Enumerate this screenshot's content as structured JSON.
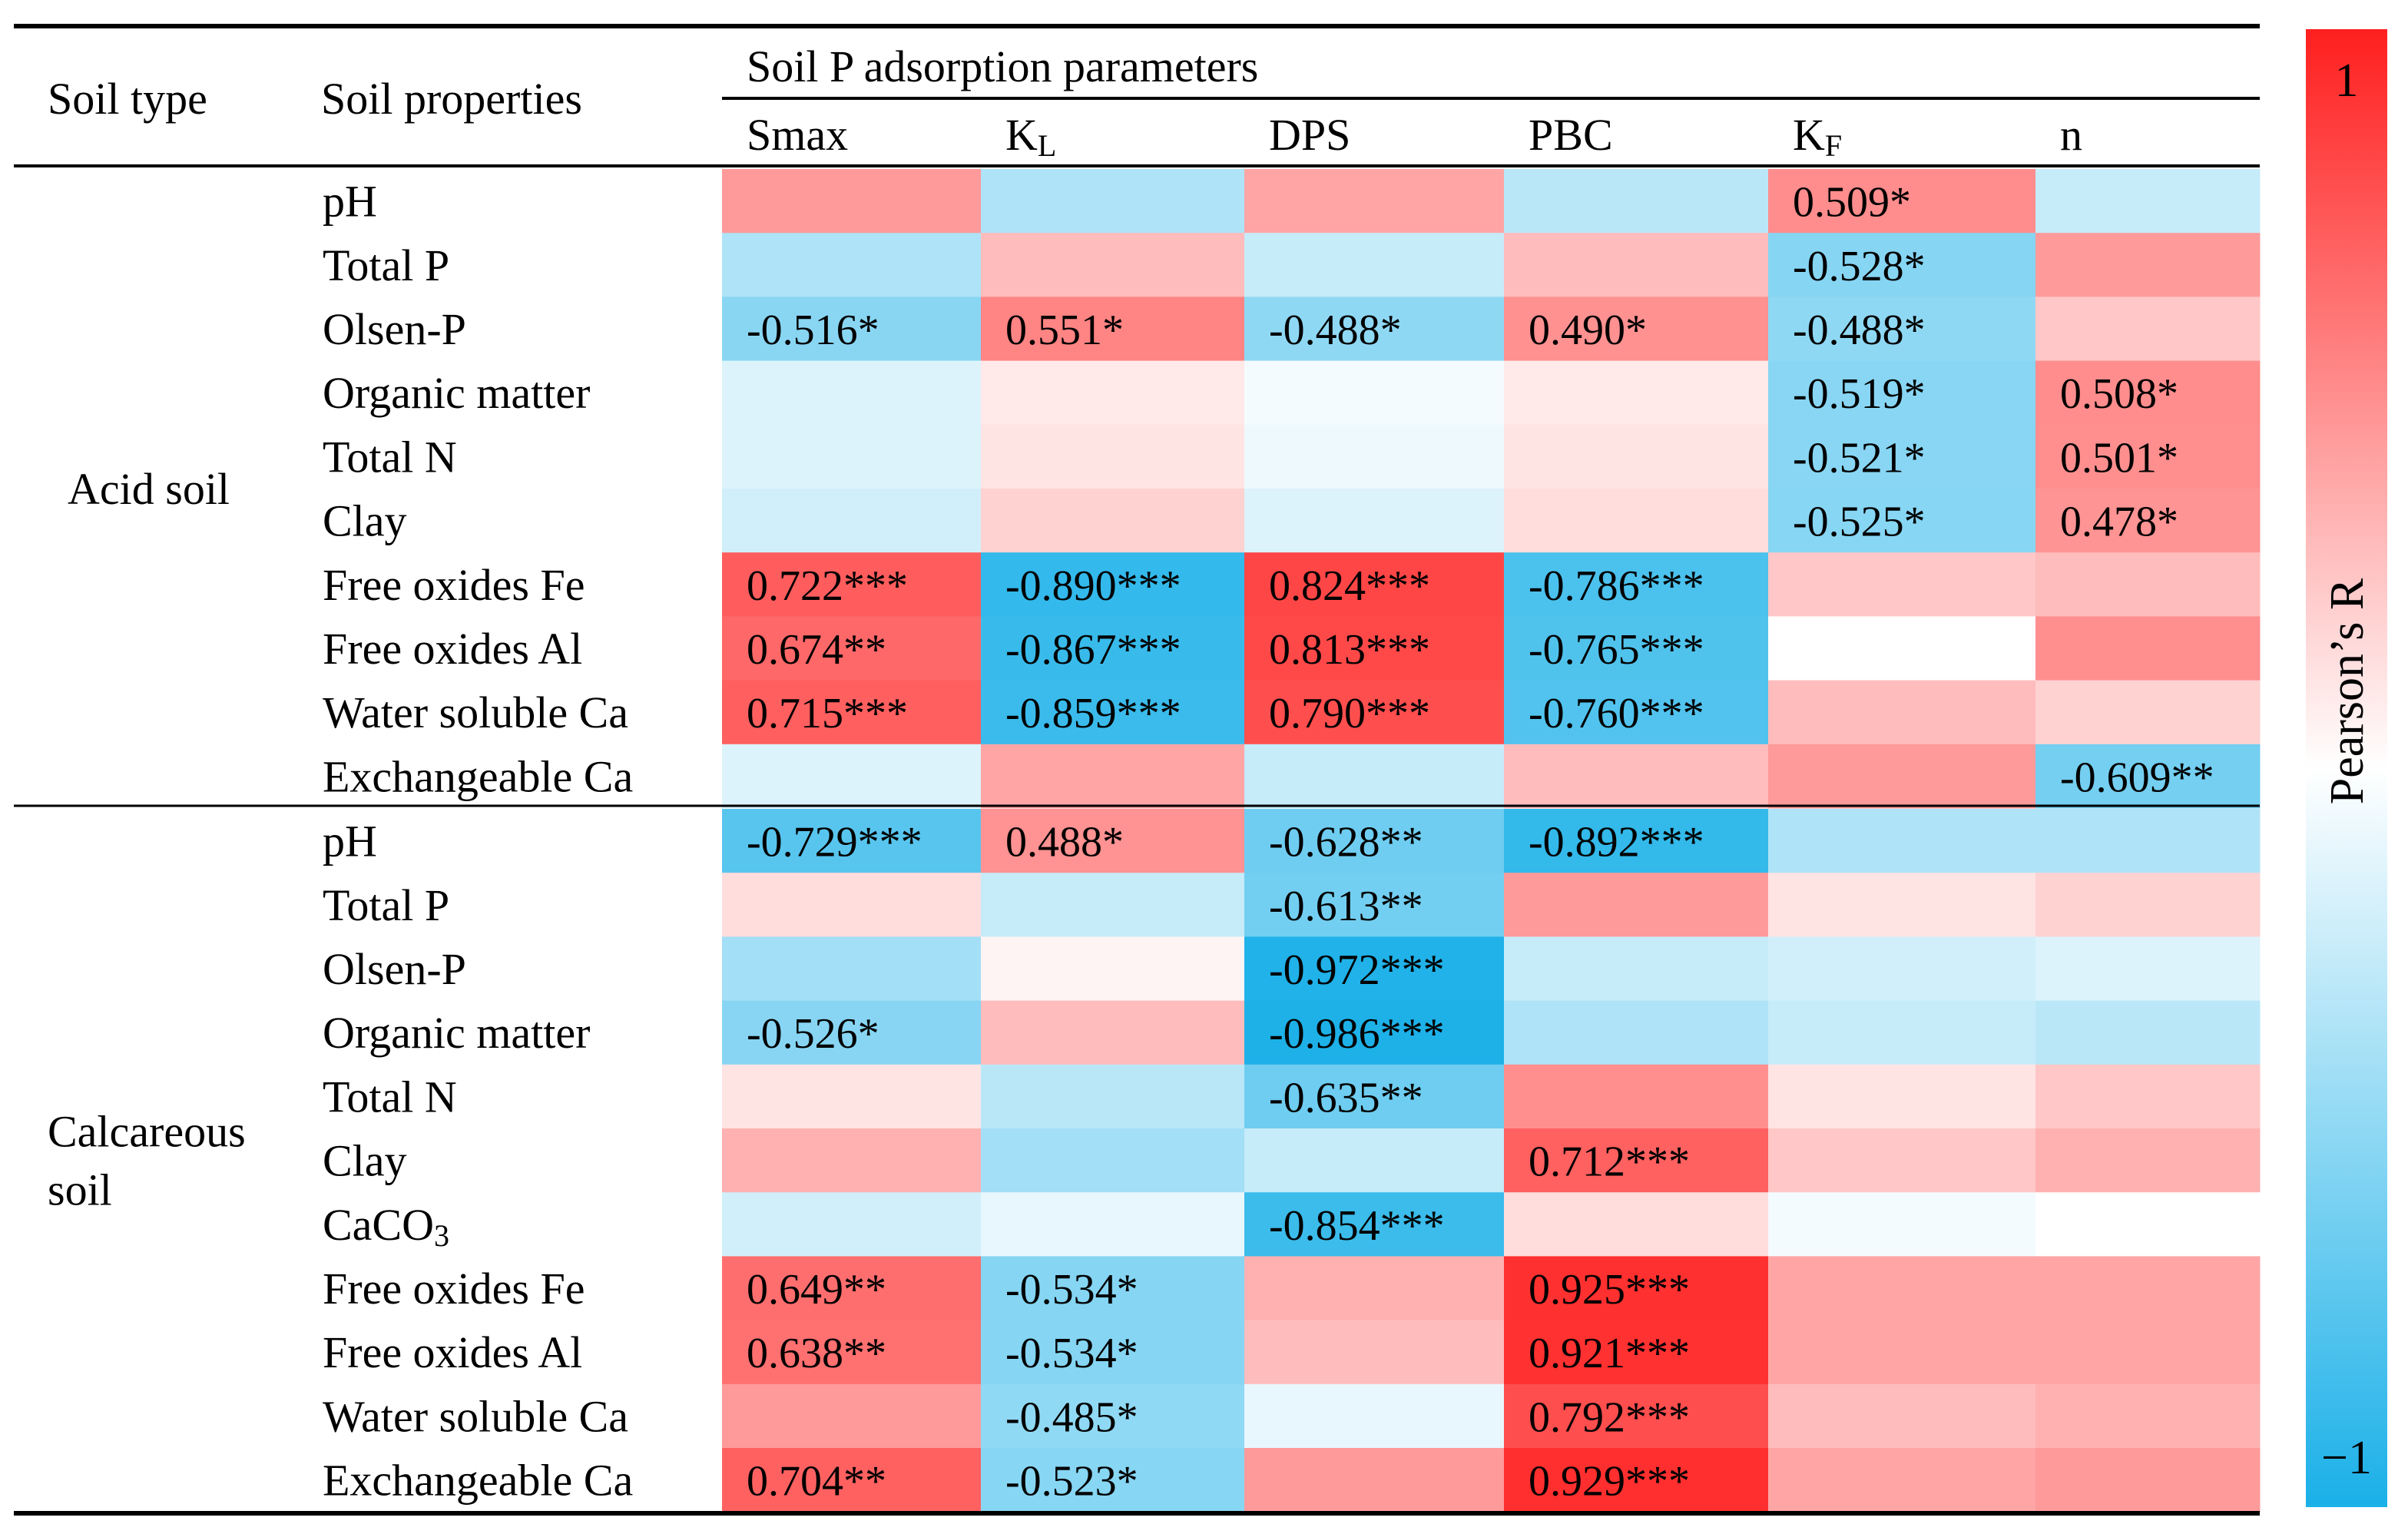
{
  "header": {
    "soil_type": "Soil type",
    "soil_properties": "Soil properties",
    "group_title": "Soil P adsorption parameters"
  },
  "chart_data": {
    "type": "heatmap",
    "title": "Soil P adsorption parameters",
    "columns": [
      {
        "main": "Smax",
        "sub": ""
      },
      {
        "main": "K",
        "sub": "L"
      },
      {
        "main": "DPS",
        "sub": ""
      },
      {
        "main": "PBC",
        "sub": ""
      },
      {
        "main": "K",
        "sub": "F"
      },
      {
        "main": "n",
        "sub": ""
      }
    ],
    "groups": [
      {
        "name_lines": [
          "Acid soil"
        ],
        "rows": [
          {
            "label": "pH",
            "values": [
              0.45,
              -0.35,
              0.4,
              -0.3,
              0.509,
              -0.25
            ],
            "labels": [
              "",
              "",
              "",
              "",
              "0.509*",
              ""
            ]
          },
          {
            "label": "Total P",
            "values": [
              -0.35,
              0.3,
              -0.25,
              0.3,
              -0.528,
              0.45
            ],
            "labels": [
              "",
              "",
              "",
              "",
              "-0.528*",
              ""
            ]
          },
          {
            "label": "Olsen-P",
            "values": [
              -0.516,
              0.551,
              -0.488,
              0.49,
              -0.488,
              0.25
            ],
            "labels": [
              "-0.516*",
              "0.551*",
              "-0.488*",
              "0.490*",
              "-0.488*",
              ""
            ]
          },
          {
            "label": "Organic matter",
            "values": [
              -0.15,
              0.1,
              -0.05,
              0.1,
              -0.519,
              0.508
            ],
            "labels": [
              "",
              "",
              "",
              "",
              "-0.519*",
              "0.508*"
            ]
          },
          {
            "label": "Total N",
            "values": [
              -0.15,
              0.12,
              -0.08,
              0.12,
              -0.521,
              0.501
            ],
            "labels": [
              "",
              "",
              "",
              "",
              "-0.521*",
              "0.501*"
            ]
          },
          {
            "label": "Clay",
            "values": [
              -0.2,
              0.2,
              -0.15,
              0.15,
              -0.525,
              0.478
            ],
            "labels": [
              "",
              "",
              "",
              "",
              "-0.525*",
              "0.478*"
            ]
          },
          {
            "label": "Free oxides Fe",
            "values": [
              0.722,
              -0.89,
              0.824,
              -0.786,
              0.25,
              0.3
            ],
            "labels": [
              "0.722***",
              "-0.890***",
              "0.824***",
              "-0.786***",
              "",
              ""
            ]
          },
          {
            "label": "Free oxides Al",
            "values": [
              0.674,
              -0.867,
              0.813,
              -0.765,
              0.0,
              0.5
            ],
            "labels": [
              "0.674**",
              "-0.867***",
              "0.813***",
              "-0.765***",
              "",
              ""
            ]
          },
          {
            "label": "Water soluble Ca",
            "values": [
              0.715,
              -0.859,
              0.79,
              -0.76,
              0.3,
              0.2
            ],
            "labels": [
              "0.715***",
              "-0.859***",
              "0.790***",
              "-0.760***",
              "",
              ""
            ]
          },
          {
            "label": "Exchangeable Ca",
            "values": [
              -0.15,
              0.4,
              -0.25,
              0.3,
              0.45,
              -0.609
            ],
            "labels": [
              "",
              "",
              "",
              "",
              "",
              "-0.609**"
            ]
          }
        ]
      },
      {
        "name_lines": [
          "Calcareous",
          "soil"
        ],
        "rows": [
          {
            "label": "pH",
            "values": [
              -0.729,
              0.488,
              -0.628,
              -0.892,
              -0.35,
              -0.35
            ],
            "labels": [
              "-0.729***",
              "0.488*",
              "-0.628**",
              "-0.892***",
              "",
              ""
            ]
          },
          {
            "label": "Total P",
            "values": [
              0.15,
              -0.25,
              -0.613,
              0.45,
              0.12,
              0.2
            ],
            "labels": [
              "",
              "",
              "-0.613**",
              "",
              "",
              ""
            ]
          },
          {
            "label": "Olsen-P",
            "values": [
              -0.4,
              0.05,
              -0.972,
              -0.25,
              -0.2,
              -0.15
            ],
            "labels": [
              "",
              "",
              "-0.972***",
              "",
              "",
              ""
            ]
          },
          {
            "label": "Organic matter",
            "values": [
              -0.526,
              0.3,
              -0.986,
              -0.35,
              -0.25,
              -0.3
            ],
            "labels": [
              "-0.526*",
              "",
              "-0.986***",
              "",
              "",
              ""
            ]
          },
          {
            "label": "Total N",
            "values": [
              0.12,
              -0.3,
              -0.635,
              0.5,
              0.12,
              0.25
            ],
            "labels": [
              "",
              "",
              "-0.635**",
              "",
              "",
              ""
            ]
          },
          {
            "label": "Clay",
            "values": [
              0.35,
              -0.4,
              -0.25,
              0.712,
              0.25,
              0.35
            ],
            "labels": [
              "",
              "",
              "",
              "0.712***",
              "",
              ""
            ]
          },
          {
            "label": "CaCO",
            "sub": "3",
            "values": [
              -0.2,
              -0.1,
              -0.854,
              0.15,
              -0.05,
              0.0
            ],
            "labels": [
              "",
              "",
              "-0.854***",
              "",
              "",
              ""
            ]
          },
          {
            "label": "Free oxides Fe",
            "values": [
              0.649,
              -0.534,
              0.35,
              0.925,
              0.4,
              0.4
            ],
            "labels": [
              "0.649**",
              "-0.534*",
              "",
              "0.925***",
              "",
              ""
            ]
          },
          {
            "label": "Free oxides Al",
            "values": [
              0.638,
              -0.534,
              0.3,
              0.921,
              0.4,
              0.4
            ],
            "labels": [
              "0.638**",
              "-0.534*",
              "",
              "0.921***",
              "",
              ""
            ]
          },
          {
            "label": "Water soluble Ca",
            "values": [
              0.45,
              -0.485,
              -0.1,
              0.792,
              0.3,
              0.35
            ],
            "labels": [
              "",
              "-0.485*",
              "",
              "0.792***",
              "",
              ""
            ]
          },
          {
            "label": "Exchangeable Ca",
            "values": [
              0.704,
              -0.523,
              0.45,
              0.929,
              0.4,
              0.45
            ],
            "labels": [
              "0.704**",
              "-0.523*",
              "",
              "0.929***",
              "",
              ""
            ]
          }
        ]
      }
    ],
    "colorbar": {
      "label": "Pearson’s R",
      "max_label": "1",
      "min_label": "−1",
      "range": [
        -1,
        1
      ]
    },
    "colors": {
      "positive": "#ff1f1f",
      "zero": "#ffffff",
      "negative": "#1ab0e8"
    }
  }
}
